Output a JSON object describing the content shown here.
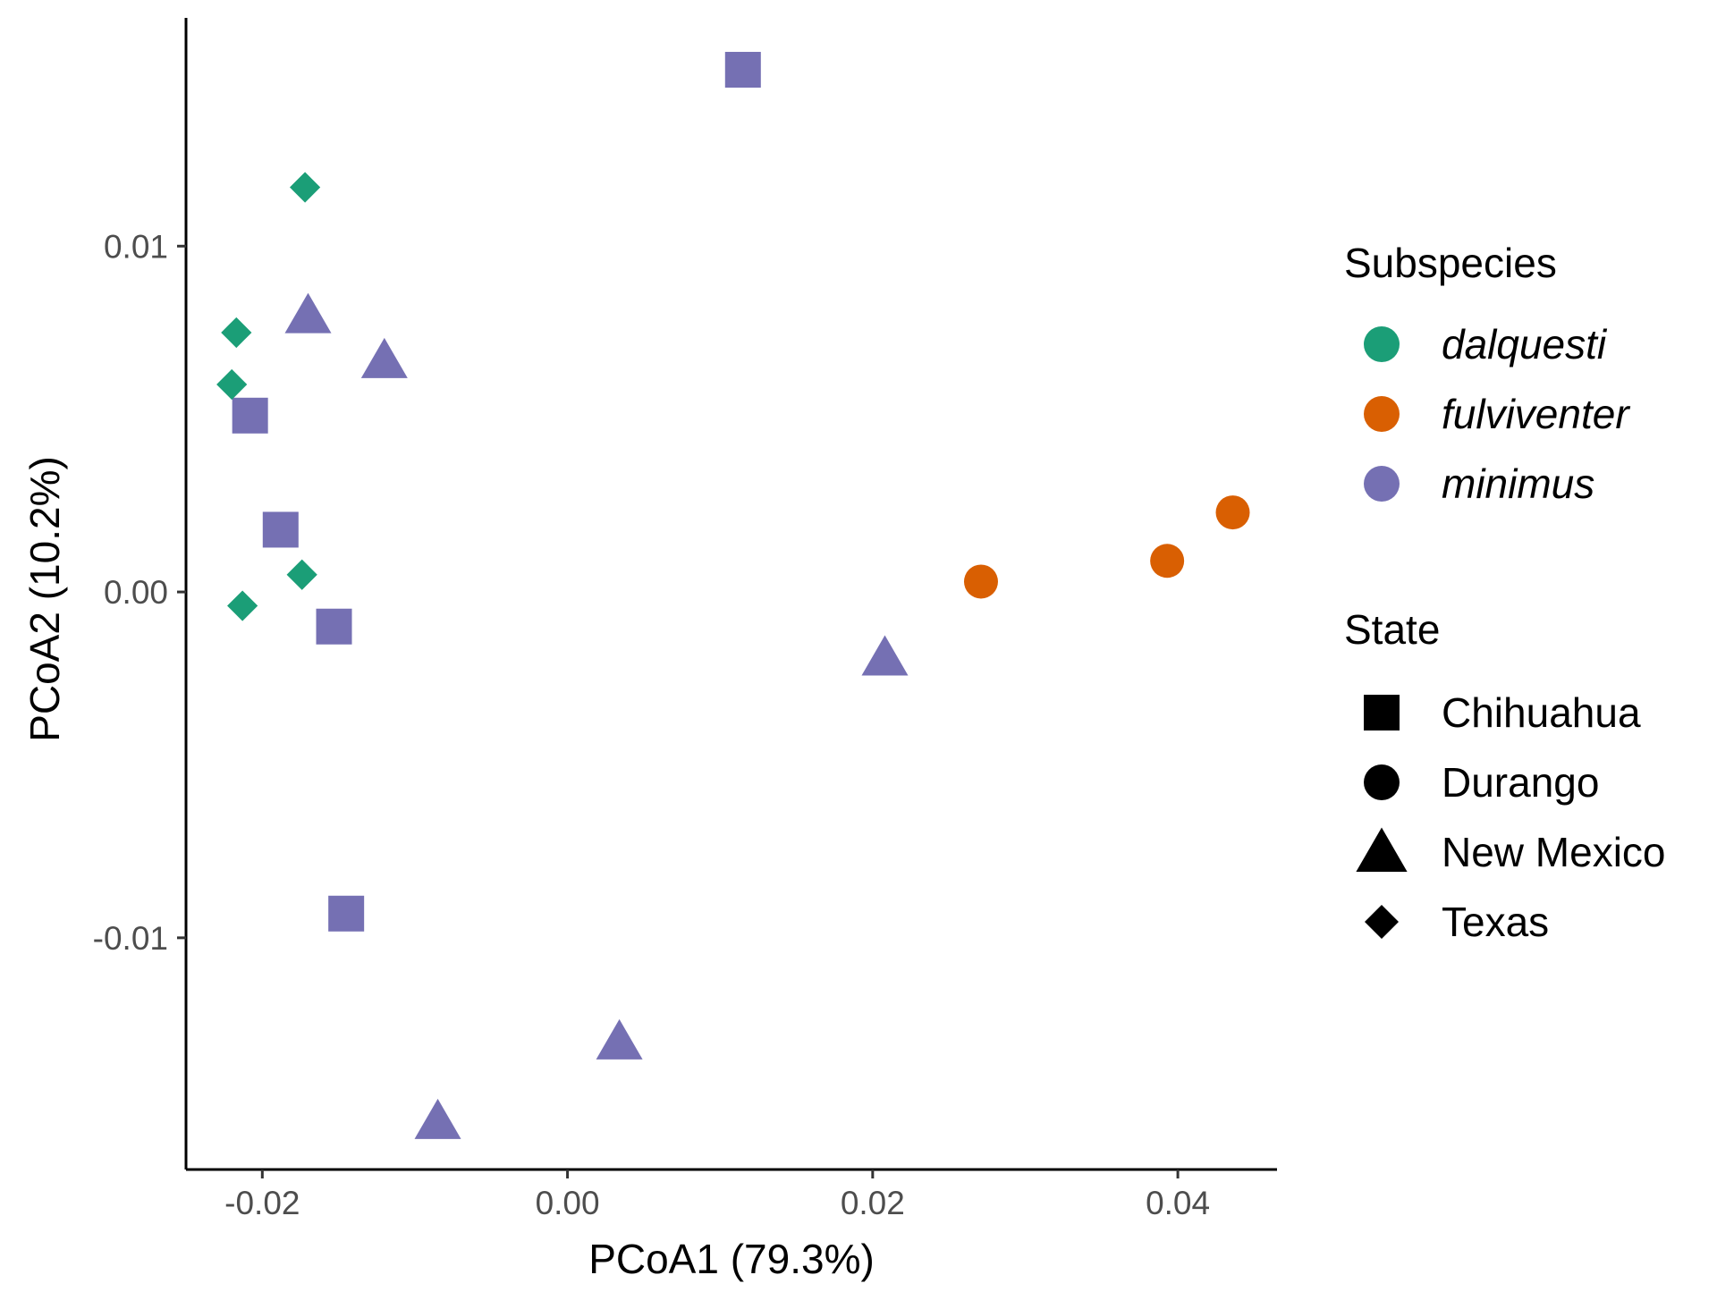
{
  "chart_data": {
    "type": "scatter",
    "xlabel": "PCoA1 (79.3%)",
    "ylabel": "PCoA2 (10.2%)",
    "xlim": [
      -0.025,
      0.0465
    ],
    "ylim": [
      -0.0167,
      0.0166
    ],
    "x_ticks": [
      {
        "value": -0.02,
        "label": "-0.02"
      },
      {
        "value": 0.0,
        "label": "0.00"
      },
      {
        "value": 0.02,
        "label": "0.02"
      },
      {
        "value": 0.04,
        "label": "0.04"
      }
    ],
    "y_ticks": [
      {
        "value": -0.01,
        "label": "-0.01"
      },
      {
        "value": 0.0,
        "label": "0.00"
      },
      {
        "value": 0.01,
        "label": "0.01"
      }
    ],
    "grid": false,
    "legend_placement": "right",
    "subspecies_legend": {
      "title": "Subspecies",
      "items": [
        {
          "key": "dalquesti",
          "label": "dalquesti",
          "color": "#1B9E77"
        },
        {
          "key": "fulviventer",
          "label": "fulviventer",
          "color": "#D95F02"
        },
        {
          "key": "minimus",
          "label": "minimus",
          "color": "#7570B3"
        }
      ]
    },
    "state_legend": {
      "title": "State",
      "items": [
        {
          "key": "chihuahua",
          "label": "Chihuahua",
          "shape": "square"
        },
        {
          "key": "durango",
          "label": "Durango",
          "shape": "circle"
        },
        {
          "key": "new-mexico",
          "label": "New Mexico",
          "shape": "triangle"
        },
        {
          "key": "texas",
          "label": "Texas",
          "shape": "diamond"
        }
      ]
    },
    "points": [
      {
        "x": 0.0115,
        "y": 0.0151,
        "subspecies": "minimus",
        "state": "chihuahua"
      },
      {
        "x": -0.0208,
        "y": 0.0051,
        "subspecies": "minimus",
        "state": "chihuahua"
      },
      {
        "x": -0.0188,
        "y": 0.0018,
        "subspecies": "minimus",
        "state": "chihuahua"
      },
      {
        "x": -0.0153,
        "y": -0.001,
        "subspecies": "minimus",
        "state": "chihuahua"
      },
      {
        "x": -0.0145,
        "y": -0.0093,
        "subspecies": "minimus",
        "state": "chihuahua"
      },
      {
        "x": -0.017,
        "y": 0.008,
        "subspecies": "minimus",
        "state": "new-mexico"
      },
      {
        "x": -0.012,
        "y": 0.0067,
        "subspecies": "minimus",
        "state": "new-mexico"
      },
      {
        "x": 0.0208,
        "y": -0.0019,
        "subspecies": "minimus",
        "state": "new-mexico"
      },
      {
        "x": 0.0034,
        "y": -0.013,
        "subspecies": "minimus",
        "state": "new-mexico"
      },
      {
        "x": -0.0085,
        "y": -0.0153,
        "subspecies": "minimus",
        "state": "new-mexico"
      },
      {
        "x": -0.0172,
        "y": 0.0117,
        "subspecies": "dalquesti",
        "state": "texas"
      },
      {
        "x": -0.0217,
        "y": 0.0075,
        "subspecies": "dalquesti",
        "state": "texas"
      },
      {
        "x": -0.022,
        "y": 0.006,
        "subspecies": "dalquesti",
        "state": "texas"
      },
      {
        "x": -0.0174,
        "y": 0.0005,
        "subspecies": "dalquesti",
        "state": "texas"
      },
      {
        "x": -0.0213,
        "y": -0.0004,
        "subspecies": "dalquesti",
        "state": "texas"
      },
      {
        "x": 0.0271,
        "y": 0.0003,
        "subspecies": "fulviventer",
        "state": "durango"
      },
      {
        "x": 0.0393,
        "y": 0.0009,
        "subspecies": "fulviventer",
        "state": "durango"
      },
      {
        "x": 0.0436,
        "y": 0.0023,
        "subspecies": "fulviventer",
        "state": "durango"
      }
    ]
  }
}
